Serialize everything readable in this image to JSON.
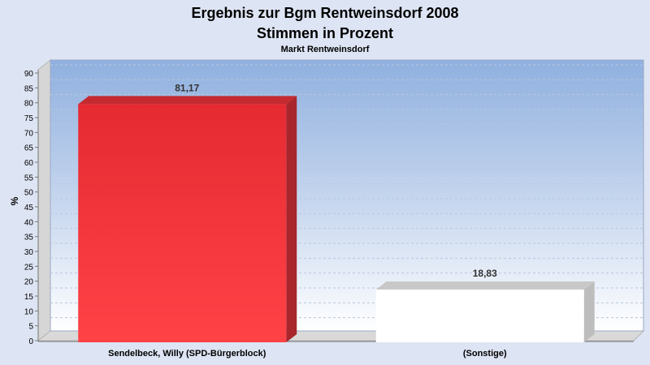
{
  "chart_data": {
    "type": "bar",
    "title": "Ergebnis zur Bgm Rentweinsdorf 2008",
    "title_line2": "Stimmen in Prozent",
    "subtitle": "Markt Rentweinsdorf",
    "ylabel": "%",
    "xlabel": "",
    "ylim": [
      0,
      90
    ],
    "ytick_step": 5,
    "grid": true,
    "categories": [
      "Sendelbeck, Willy (SPD-Bürgerblock)",
      "(Sonstige)"
    ],
    "values": [
      81.17,
      18.83
    ],
    "value_labels": [
      "81,17",
      "18,83"
    ],
    "colors": [
      "#f03238",
      "#ffffff"
    ],
    "side_colors": [
      "#a8262c",
      "#bdbdbd"
    ],
    "top_colors": [
      "#c42a30",
      "#c8c8c8"
    ]
  }
}
